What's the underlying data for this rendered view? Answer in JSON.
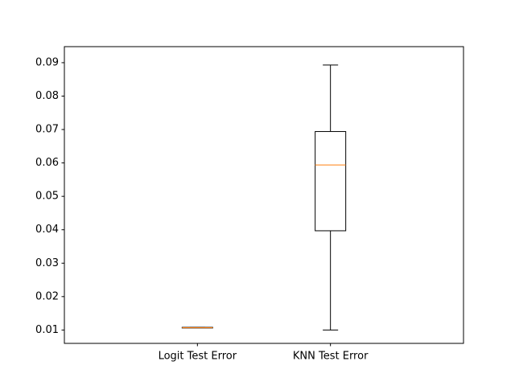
{
  "chart_data": {
    "type": "box",
    "title": "",
    "xlabel": "",
    "ylabel": "",
    "ylim": [
      0.006,
      0.0948
    ],
    "yticks": [
      0.01,
      0.02,
      0.03,
      0.04,
      0.05,
      0.06,
      0.07,
      0.08,
      0.09
    ],
    "ytick_labels": [
      "0.01",
      "0.02",
      "0.03",
      "0.04",
      "0.05",
      "0.06",
      "0.07",
      "0.08",
      "0.09"
    ],
    "grid": false,
    "categories": [
      "Logit Test Error",
      "KNN Test Error"
    ],
    "boxes": [
      {
        "label": "Logit Test Error",
        "whisker_low": 0.0107,
        "q1": 0.0107,
        "median": 0.0107,
        "q3": 0.0108,
        "whisker_high": 0.0108
      },
      {
        "label": "KNN Test Error",
        "whisker_low": 0.01,
        "q1": 0.0397,
        "median": 0.0594,
        "q3": 0.0694,
        "whisker_high": 0.0893
      }
    ],
    "colors": {
      "box": "#000000",
      "median": "#ff7f0e",
      "axes": "#000000"
    }
  }
}
